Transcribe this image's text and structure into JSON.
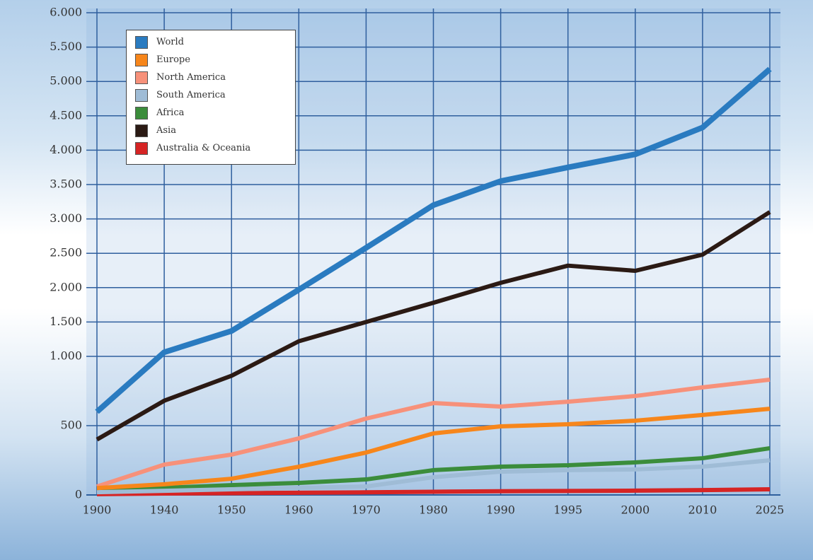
{
  "chart_data": {
    "type": "line",
    "categories": [
      "1900",
      "1940",
      "1950",
      "1960",
      "1970",
      "1980",
      "1990",
      "1995",
      "2000",
      "2010",
      "2025"
    ],
    "ylim": [
      0,
      6000
    ],
    "yticks": [
      0,
      500,
      {
        "value": 1000,
        "label": "1.000"
      },
      {
        "value": 1500,
        "label": "1.500"
      },
      {
        "value": 2000,
        "label": "2.000"
      },
      {
        "value": 2500,
        "label": "2.500"
      },
      {
        "value": 3000,
        "label": "3.000"
      },
      {
        "value": 3500,
        "label": "3.500"
      },
      {
        "value": 4000,
        "label": "4.000"
      },
      {
        "value": 4500,
        "label": "4.500"
      },
      {
        "value": 5000,
        "label": "5.000"
      },
      {
        "value": 5500,
        "label": "5.500"
      },
      {
        "value": 6000,
        "label": "6.000"
      }
    ],
    "grid": true,
    "series": [
      {
        "name": "World",
        "color": "#2a7bc0",
        "values": [
          600,
          1060,
          1370,
          1970,
          2580,
          3200,
          3550,
          3750,
          3940,
          4330,
          5180
        ]
      },
      {
        "name": "Europe",
        "color": "#f7861b",
        "values": [
          50,
          77,
          117,
          204,
          306,
          444,
          495,
          510,
          536,
          577,
          622
        ]
      },
      {
        "name": "North America",
        "color": "#f7917a",
        "values": [
          61,
          219,
          291,
          408,
          551,
          663,
          638,
          673,
          714,
          776,
          832
        ]
      },
      {
        "name": "South America",
        "color": "#9fbcd6",
        "values": [
          20,
          30,
          41,
          51,
          61,
          128,
          168,
          179,
          184,
          204,
          250
        ]
      },
      {
        "name": "Africa",
        "color": "#3b8d3b",
        "values": [
          36,
          51,
          71,
          87,
          112,
          179,
          204,
          214,
          235,
          265,
          337
        ]
      },
      {
        "name": "Asia",
        "color": "#2b1a14",
        "values": [
          400,
          680,
          860,
          1220,
          1500,
          1780,
          2070,
          2320,
          2245,
          2480,
          3100
        ]
      },
      {
        "name": "Australia & Oceania",
        "color": "#d62424",
        "values": [
          6,
          10,
          13,
          16,
          19,
          23,
          27,
          29,
          31,
          35,
          41
        ]
      }
    ],
    "legend": "upper left"
  }
}
